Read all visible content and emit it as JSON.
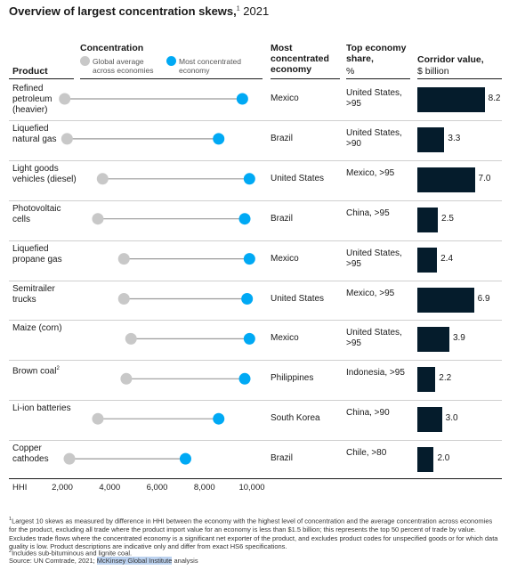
{
  "title": {
    "main": "Overview of largest concentration skews,",
    "sup": "1",
    "year": "2021"
  },
  "headers": {
    "product": "Product",
    "concentration": "Concentration",
    "legend_global": "Global average across economies",
    "legend_most": "Most concentrated economy",
    "most_concentrated": "Most concentrated economy",
    "top_share": "Top economy share,",
    "top_share_unit": "%",
    "corridor": "Corridor value,",
    "corridor_unit": "$ billion"
  },
  "colors": {
    "global": "#c8c8c8",
    "most": "#00a9f4",
    "bar": "#051c2c",
    "line": "#9a9a9a"
  },
  "rows": [
    {
      "product": "Refined petroleum (heavier)",
      "sup": "",
      "global": 2100,
      "most": 9600,
      "economy": "Mexico",
      "share": "United States, >95",
      "value": 8.2,
      "value_label": "8.2"
    },
    {
      "product": "Liquefied natural gas",
      "sup": "",
      "global": 2200,
      "most": 8600,
      "economy": "Brazil",
      "share": "United States, >90",
      "value": 3.3,
      "value_label": "3.3"
    },
    {
      "product": "Light goods vehicles (diesel)",
      "sup": "",
      "global": 3700,
      "most": 9900,
      "economy": "United States",
      "share": "Mexico, >95",
      "value": 7.0,
      "value_label": "7.0"
    },
    {
      "product": "Photovoltaic cells",
      "sup": "",
      "global": 3500,
      "most": 9700,
      "economy": "Brazil",
      "share": "China, >95",
      "value": 2.5,
      "value_label": "2.5"
    },
    {
      "product": "Liquefied propane gas",
      "sup": "",
      "global": 4600,
      "most": 9900,
      "economy": "Mexico",
      "share": "United States, >95",
      "value": 2.4,
      "value_label": "2.4"
    },
    {
      "product": "Semitrailer trucks",
      "sup": "",
      "global": 4600,
      "most": 9800,
      "economy": "United States",
      "share": "Mexico, >95",
      "value": 6.9,
      "value_label": "6.9"
    },
    {
      "product": "Maize (corn)",
      "sup": "",
      "global": 4900,
      "most": 9900,
      "economy": "Mexico",
      "share": "United States, >95",
      "value": 3.9,
      "value_label": "3.9"
    },
    {
      "product": "Brown coal",
      "sup": "2",
      "global": 4700,
      "most": 9700,
      "economy": "Philippines",
      "share": "Indonesia, >95",
      "value": 2.2,
      "value_label": "2.2"
    },
    {
      "product": "Li-ion batteries",
      "sup": "",
      "global": 3500,
      "most": 8600,
      "economy": "South Korea",
      "share": "China, >90",
      "value": 3.0,
      "value_label": "3.0"
    },
    {
      "product": "Copper cathodes",
      "sup": "",
      "global": 2300,
      "most": 7200,
      "economy": "Brazil",
      "share": "Chile, >80",
      "value": 2.0,
      "value_label": "2.0"
    }
  ],
  "chart_data": {
    "type": "scatter",
    "title": "Overview of largest concentration skews, 2021",
    "xlabel": "HHI",
    "xlim": [
      1000,
      10000
    ],
    "ticks": [
      2000,
      4000,
      6000,
      8000,
      10000
    ],
    "tick_labels": [
      "2,000",
      "4,000",
      "6,000",
      "8,000",
      "10,000"
    ],
    "categories": [
      "Refined petroleum (heavier)",
      "Liquefied natural gas",
      "Light goods vehicles (diesel)",
      "Photovoltaic cells",
      "Liquefied propane gas",
      "Semitrailer trucks",
      "Maize (corn)",
      "Brown coal",
      "Li-ion batteries",
      "Copper cathodes"
    ],
    "series": [
      {
        "name": "Global average across economies",
        "values": [
          2100,
          2200,
          3700,
          3500,
          4600,
          4600,
          4900,
          4700,
          3500,
          2300
        ]
      },
      {
        "name": "Most concentrated economy",
        "values": [
          9600,
          8600,
          9900,
          9700,
          9900,
          9800,
          9900,
          9700,
          8600,
          7200
        ]
      }
    ],
    "corridor_value_billion": [
      8.2,
      3.3,
      7.0,
      2.5,
      2.4,
      6.9,
      3.9,
      2.2,
      3.0,
      2.0
    ],
    "grid": false,
    "legend": "top"
  },
  "axis": {
    "label": "HHI",
    "ticks": [
      "2,000",
      "4,000",
      "6,000",
      "8,000",
      "10,000"
    ]
  },
  "footnotes": {
    "n1_mark": "1",
    "n1": "Largest 10 skews as measured by difference in HHI between the economy with the highest level of concentration and the average concentration across economies for the product, excluding all trade where the product import value for an economy is less than $1.5 billion; this represents the top 50 percent of trade by value. Excludes trade flows where the concentrated economy is a significant net exporter of the product, and excludes product codes for unspecified goods or for which data quality is low. Product descriptions are indicative only and differ from exact HS6 specifications.",
    "n2_mark": "2",
    "n2": "Includes sub-bituminous and lignite coal.",
    "source_prefix": "Source: UN Comtrade, 2021; ",
    "source_highlight": "McKinsey Global Institute",
    "source_suffix": " analysis"
  }
}
